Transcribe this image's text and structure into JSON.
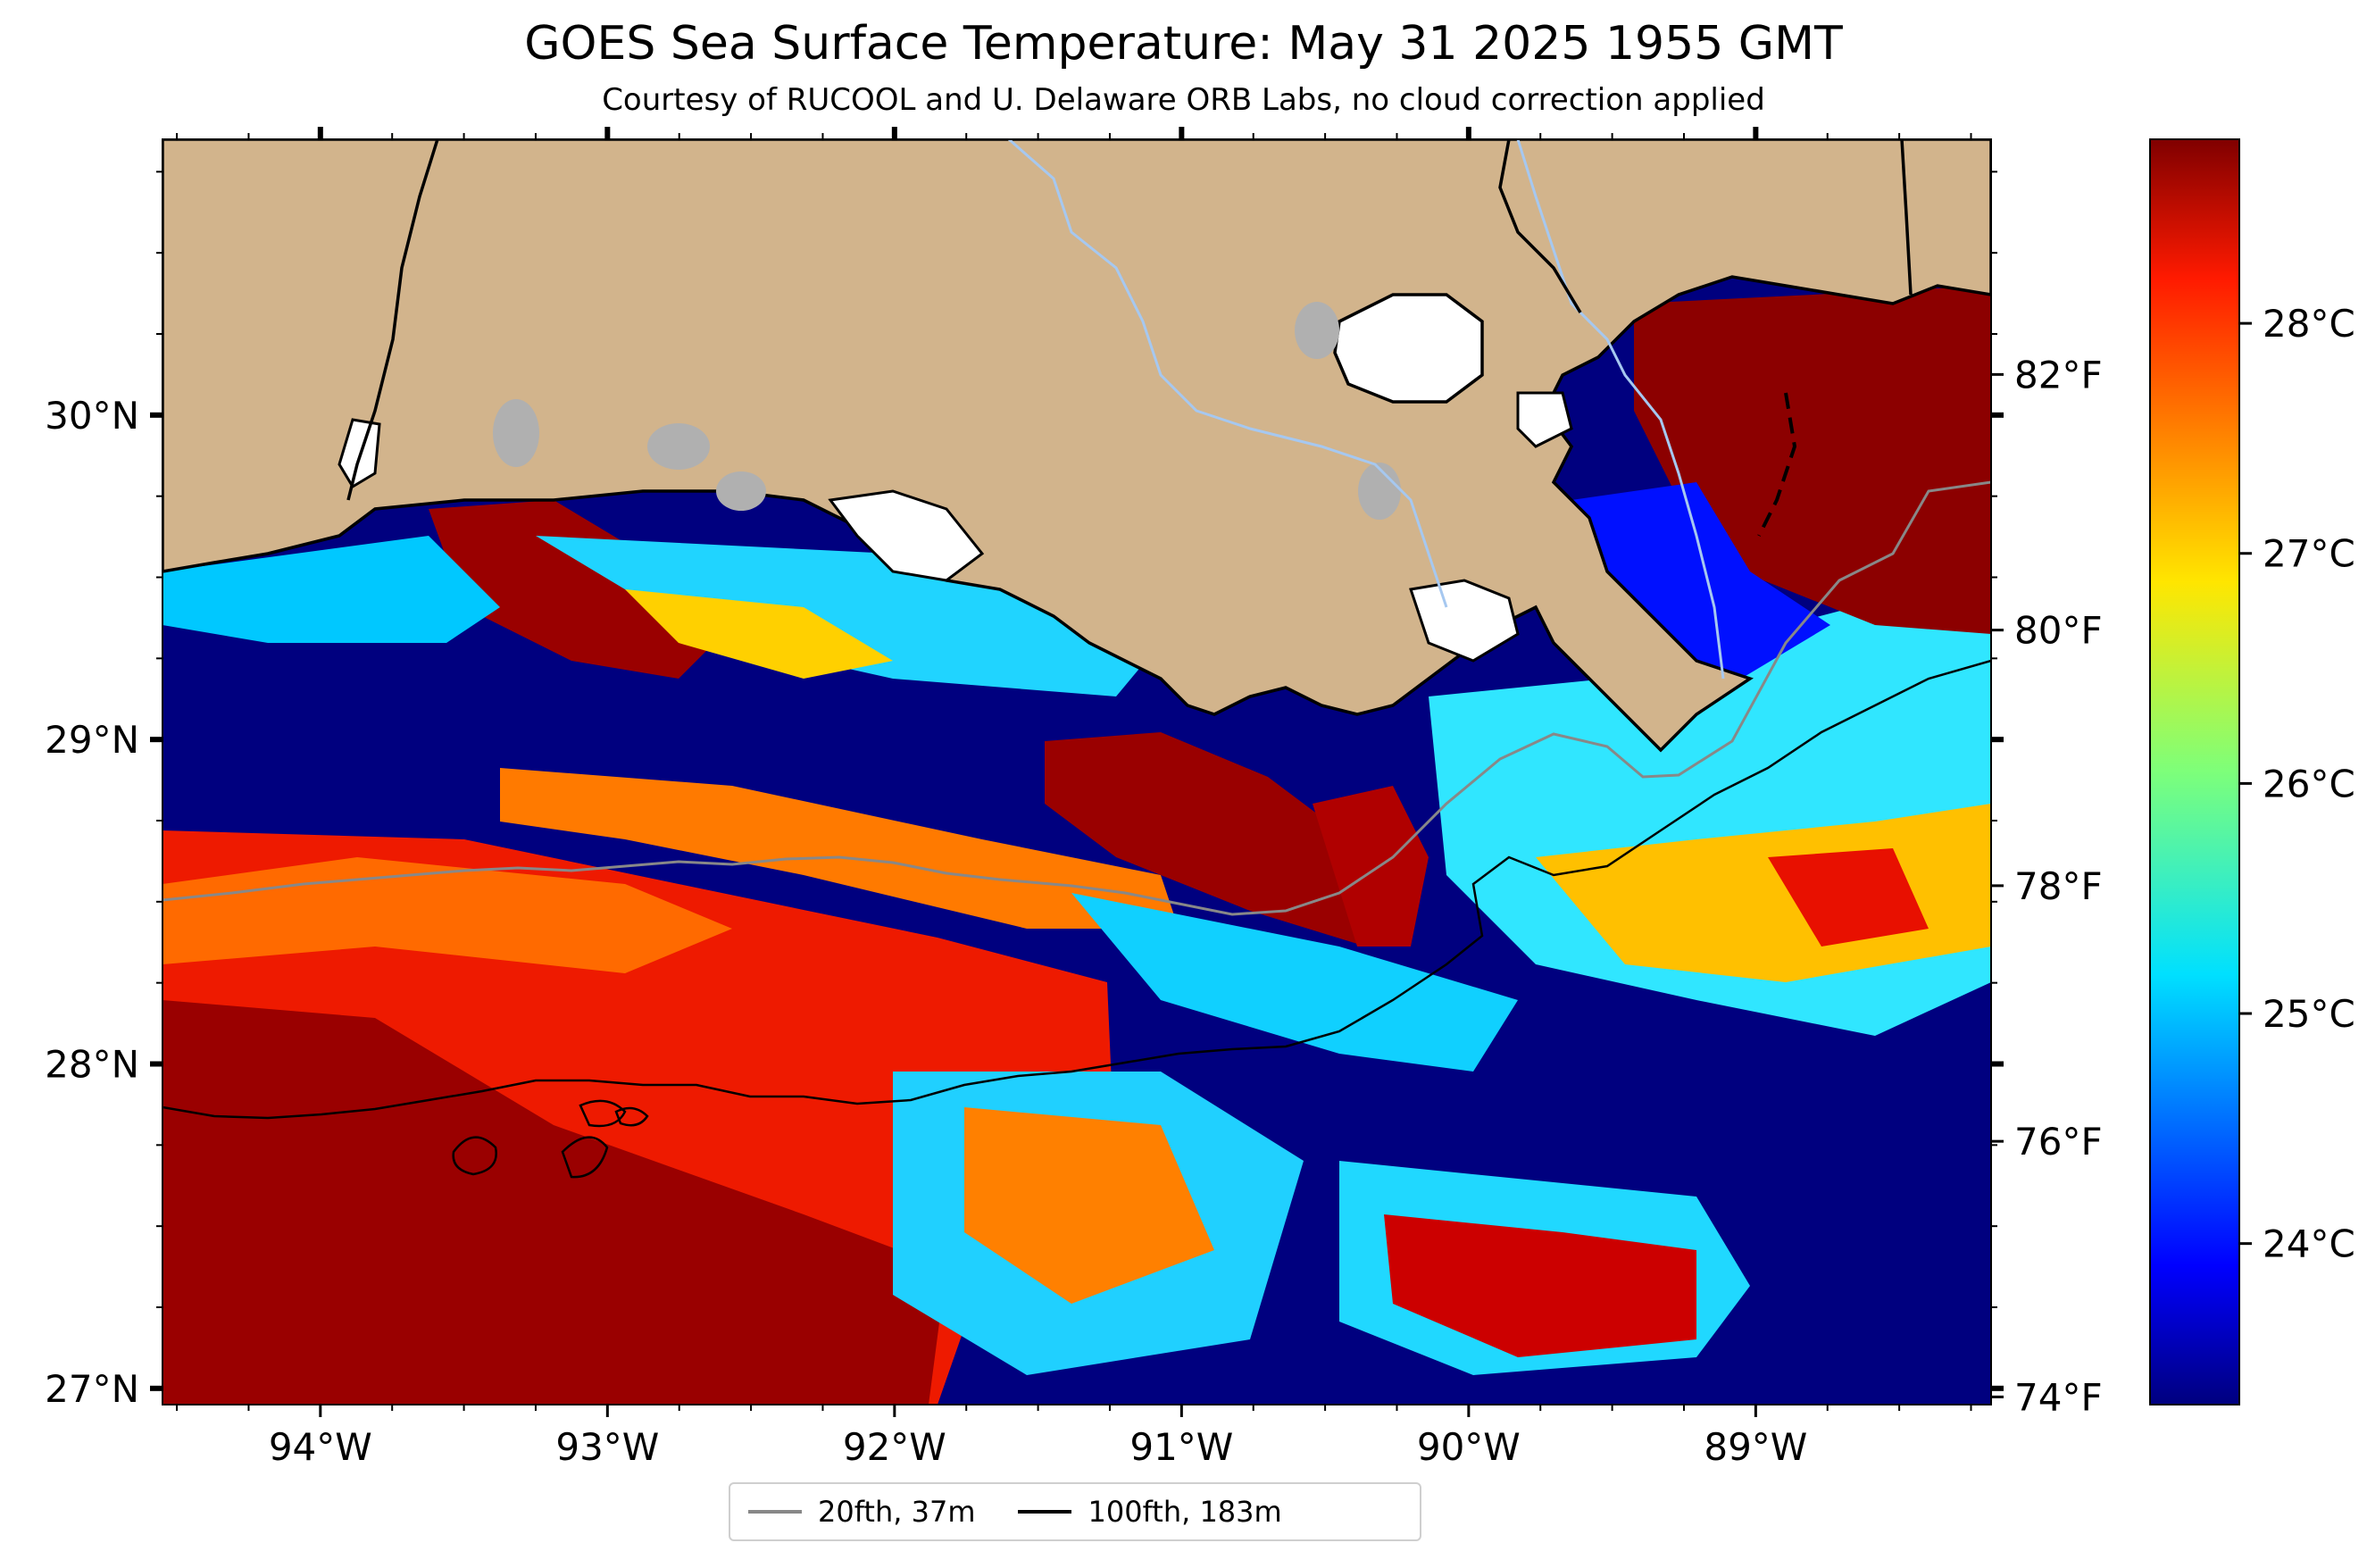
{
  "title": "GOES Sea Surface Temperature: May 31 2025 1955 GMT",
  "subtitle": "Courtesy of RUCOOL and U. Delaware ORB Labs, no cloud correction applied",
  "map": {
    "extent": {
      "lon": [
        -94.55,
        -88.18
      ],
      "lat": [
        26.95,
        30.85
      ]
    },
    "lon_ticks": [
      {
        "value": -94,
        "label": "94°W"
      },
      {
        "value": -93,
        "label": "93°W"
      },
      {
        "value": -92,
        "label": "92°W"
      },
      {
        "value": -91,
        "label": "91°W"
      },
      {
        "value": -90,
        "label": "90°W"
      },
      {
        "value": -89,
        "label": "89°W"
      }
    ],
    "lat_ticks": [
      {
        "value": 30,
        "label": "30°N"
      },
      {
        "value": 29,
        "label": "29°N"
      },
      {
        "value": 28,
        "label": "28°N"
      },
      {
        "value": 27,
        "label": "27°N"
      }
    ],
    "colors": {
      "land": "#d2b48c",
      "coast": "#000000",
      "rivers": "#a6c8f0",
      "lakes": "#b0b0b0",
      "cloud_mask": "#ffffff"
    }
  },
  "colorbar": {
    "colormap": "jet",
    "range_c": [
      23.3,
      28.8
    ],
    "celsius_ticks": [
      {
        "value": 24,
        "label": "24°C"
      },
      {
        "value": 25,
        "label": "25°C"
      },
      {
        "value": 26,
        "label": "26°C"
      },
      {
        "value": 27,
        "label": "27°C"
      },
      {
        "value": 28,
        "label": "28°C"
      }
    ],
    "fahrenheit_ticks": [
      {
        "value": 74,
        "label": "74°F"
      },
      {
        "value": 76,
        "label": "76°F"
      },
      {
        "value": 78,
        "label": "78°F"
      },
      {
        "value": 80,
        "label": "80°F"
      },
      {
        "value": 82,
        "label": "82°F"
      }
    ]
  },
  "legend": {
    "items": [
      {
        "label": "20fth, 37m",
        "color": "#888888"
      },
      {
        "label": "100fth, 183m",
        "color": "#000000"
      }
    ]
  }
}
